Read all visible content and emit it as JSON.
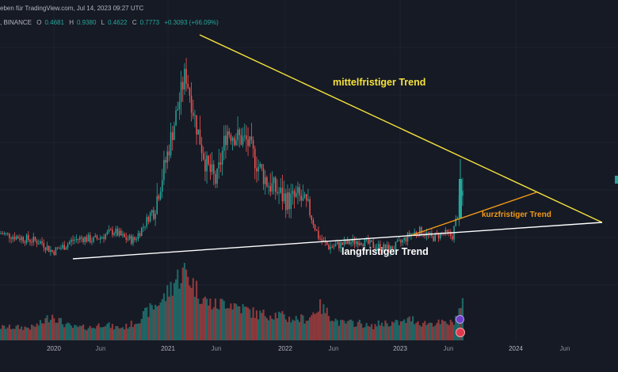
{
  "header": {
    "line1": "eben für TradingView.com,  Jul 14, 2023 09:27 UTC",
    "exchange": ", BINANCE",
    "o_label": "O",
    "o_value": "0.4681",
    "h_label": "H",
    "h_value": "0.9380",
    "l_label": "L",
    "l_value": "0.4622",
    "c_label": "C",
    "c_value": "0.7773",
    "change": "+0.3093 (+66.09%)"
  },
  "annotations": {
    "medium_term": "mittelfristiger Trend",
    "short_term": "kurzfristiger Trend",
    "long_term": "langfristiger Trend"
  },
  "xaxis": {
    "labels": [
      "2020",
      "Jun",
      "2021",
      "Jun",
      "2022",
      "Jun",
      "2023",
      "Jun",
      "2024",
      "Jun"
    ]
  },
  "colors": {
    "up": "#26a69a",
    "down": "#ef5350",
    "medium_trend": "#f5e23b",
    "short_trend": "#f29a17",
    "long_trend": "#ffffff",
    "background": "#161a25"
  },
  "chart_data": {
    "type": "candlestick",
    "title": "",
    "xlabel": "",
    "ylabel": "",
    "x": [
      "2019-10",
      "2019-11",
      "2019-12",
      "2020-01",
      "2020-02",
      "2020-03",
      "2020-04",
      "2020-05",
      "2020-06",
      "2020-07",
      "2020-08",
      "2020-09",
      "2020-10",
      "2020-11",
      "2020-12",
      "2021-01",
      "2021-02",
      "2021-03",
      "2021-04",
      "2021-05",
      "2021-06",
      "2021-07",
      "2021-08",
      "2021-09",
      "2021-10",
      "2021-11",
      "2021-12",
      "2022-01",
      "2022-02",
      "2022-03",
      "2022-04",
      "2022-05",
      "2022-06",
      "2022-07",
      "2022-08",
      "2022-09",
      "2022-10",
      "2022-11",
      "2022-12",
      "2023-01",
      "2023-02",
      "2023-03",
      "2023-04",
      "2023-05",
      "2023-06",
      "2023-07"
    ],
    "price_index": [
      30,
      29,
      28,
      27,
      26,
      22,
      24,
      27,
      28,
      27,
      29,
      31,
      28,
      27,
      34,
      42,
      60,
      80,
      100,
      78,
      60,
      52,
      75,
      72,
      70,
      60,
      52,
      48,
      44,
      46,
      40,
      28,
      24,
      25,
      26,
      27,
      25,
      24,
      23,
      26,
      30,
      31,
      28,
      30,
      29,
      48
    ],
    "volume_index": [
      3,
      3,
      3,
      3,
      4,
      6,
      4,
      3,
      3,
      3,
      4,
      3,
      3,
      4,
      6,
      8,
      10,
      14,
      16,
      12,
      9,
      8,
      9,
      8,
      7,
      6,
      6,
      6,
      5,
      5,
      5,
      8,
      6,
      4,
      4,
      4,
      3,
      4,
      4,
      4,
      5,
      4,
      4,
      4,
      4,
      8
    ],
    "trendlines": [
      {
        "name": "mittelfristiger Trend"
      },
      {
        "name": "kurzfristiger Trend"
      },
      {
        "name": "langfristiger Trend"
      }
    ]
  }
}
